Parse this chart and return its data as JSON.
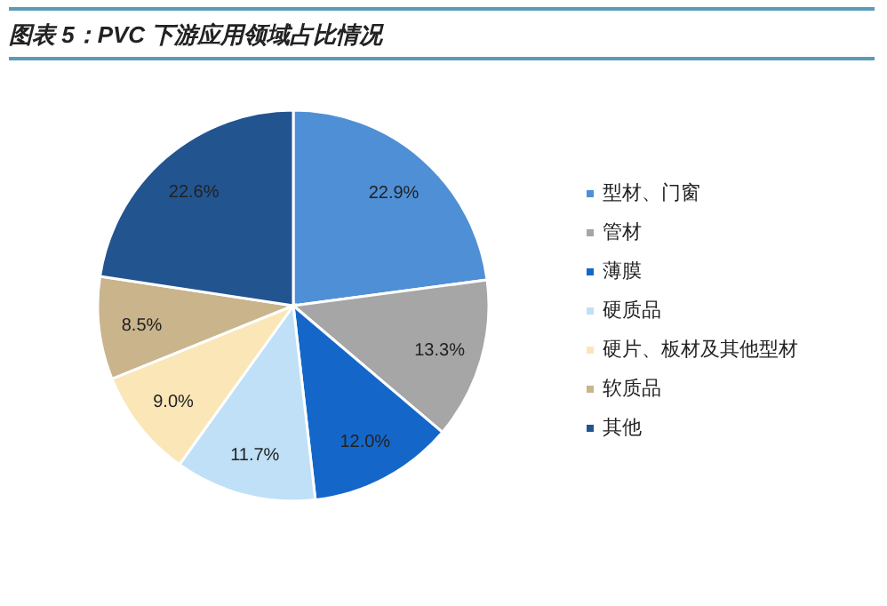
{
  "chart_data": {
    "type": "pie",
    "title": "图表 5：PVC 下游应用领域占比情况",
    "categories": [
      "型材、门窗",
      "管材",
      "薄膜",
      "硬质品",
      "硬片、板材及其他型材",
      "软质品",
      "其他"
    ],
    "values": [
      22.9,
      13.3,
      12.0,
      11.7,
      9.0,
      8.5,
      22.6
    ],
    "colors": [
      "#4f8fd6",
      "#a6a6a6",
      "#1467c9",
      "#bfe0f7",
      "#fbe6b8",
      "#c9b48c",
      "#22548f"
    ],
    "value_labels": [
      "22.9%",
      "13.3%",
      "12.0%",
      "11.7%",
      "9.0%",
      "8.5%",
      "22.6%"
    ],
    "legend": "right"
  }
}
